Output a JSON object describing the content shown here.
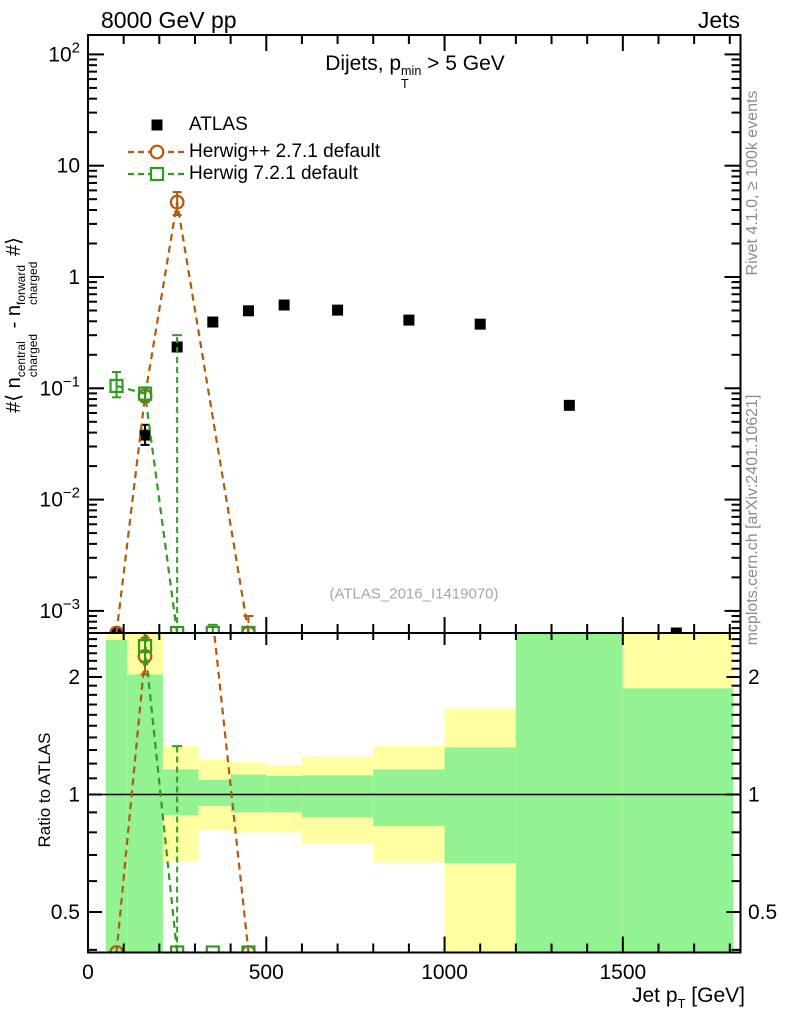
{
  "titles": {
    "top_left": "8000 GeV pp",
    "top_right": "Jets",
    "watermark": "(ATLAS_2016_I1419070)",
    "side_top": "Rivet 4.1.0, ≥ 100k events",
    "side_bottom": "mcplots.cern.ch [arXiv:2401.10621]"
  },
  "subtitle": {
    "pre": "Dijets, p",
    "sup": "min",
    "sub": "T",
    "post": " > 5 GeV"
  },
  "axis_labels": {
    "x": {
      "pre": "Jet p",
      "sub": "T",
      "post": " [GeV]"
    },
    "y_main": {
      "pre": "#⟨ n",
      "sup1": "central",
      "sub1": "charged",
      "mid": " - n",
      "sup2": "forward",
      "sub2": "charged",
      "post": " #⟩"
    },
    "y_ratio": "Ratio to ATLAS"
  },
  "legend": [
    {
      "label": "ATLAS",
      "color": "#000000",
      "marker": "square-filled",
      "dashed": false
    },
    {
      "label": "Herwig++ 2.7.1 default",
      "color": "#b35a0b",
      "marker": "circle-open",
      "dashed": true
    },
    {
      "label": "Herwig 7.2.1 default",
      "color": "#2f9b20",
      "marker": "square-open",
      "dashed": true
    }
  ],
  "chart_data": {
    "type": "scatter",
    "title": "Dijets, pT^min > 5 GeV",
    "x_axis": {
      "label": "Jet pT [GeV]",
      "scale": "linear",
      "range": [
        0,
        1830
      ],
      "major_ticks": [
        0,
        500,
        1000,
        1500
      ],
      "tick_labels": [
        "0",
        "500",
        "1000",
        "1500"
      ],
      "minor_step": 100
    },
    "y_axis_main": {
      "label": "#< n_charged^central - n_charged^forward #>",
      "scale": "log",
      "range": [
        0.00063,
        150
      ],
      "ticks": [
        {
          "v": 100,
          "base": "10",
          "exp": "2"
        },
        {
          "v": 10,
          "base": "10",
          "exp": ""
        },
        {
          "v": 1,
          "base": "1",
          "exp": ""
        },
        {
          "v": 0.1,
          "base": "10",
          "exp": "−1"
        },
        {
          "v": 0.01,
          "base": "10",
          "exp": "−2"
        },
        {
          "v": 0.001,
          "base": "10",
          "exp": "−3"
        }
      ]
    },
    "y_axis_ratio": {
      "label": "Ratio to ATLAS",
      "scale": "log",
      "range": [
        0.394,
        2.59
      ],
      "ticks": [
        {
          "v": 2,
          "t": "2"
        },
        {
          "v": 1,
          "t": "1"
        },
        {
          "v": 0.5,
          "t": "0.5"
        }
      ],
      "minor_from": 0.4,
      "minor_to": 2.5,
      "minor_step": 0.1
    },
    "reference_line": 1,
    "band_colors": {
      "green": "#93f393",
      "yellow": "#ffffa1"
    },
    "ratio_bands": [
      {
        "x1": 50,
        "x2": 110,
        "green": [
          0.05,
          2.49
        ],
        "yellow": [
          0.05,
          5.0
        ]
      },
      {
        "x1": 110,
        "x2": 210,
        "green": [
          0.05,
          2.03
        ],
        "yellow": [
          0.05,
          5.0
        ]
      },
      {
        "x1": 210,
        "x2": 310,
        "green": [
          0.886,
          1.16
        ],
        "yellow": [
          0.676,
          1.33
        ]
      },
      {
        "x1": 310,
        "x2": 400,
        "green": [
          0.935,
          1.09
        ],
        "yellow": [
          0.81,
          1.23
        ]
      },
      {
        "x1": 400,
        "x2": 500,
        "green": [
          0.9,
          1.125
        ],
        "yellow": [
          0.8,
          1.21
        ]
      },
      {
        "x1": 500,
        "x2": 600,
        "green": [
          0.9,
          1.115
        ],
        "yellow": [
          0.8,
          1.19
        ]
      },
      {
        "x1": 600,
        "x2": 800,
        "green": [
          0.875,
          1.12
        ],
        "yellow": [
          0.75,
          1.25
        ]
      },
      {
        "x1": 800,
        "x2": 1000,
        "green": [
          0.83,
          1.16
        ],
        "yellow": [
          0.67,
          1.33
        ]
      },
      {
        "x1": 1000,
        "x2": 1200,
        "green": [
          0.667,
          1.32
        ],
        "yellow": [
          0.05,
          1.66
        ]
      },
      {
        "x1": 1200,
        "x2": 1500,
        "green": [
          0.05,
          5.0
        ],
        "yellow": [
          0.05,
          5.0
        ]
      },
      {
        "x1": 1500,
        "x2": 1810,
        "green": [
          0.05,
          1.87
        ],
        "yellow": [
          0.05,
          5.0
        ]
      }
    ],
    "series": [
      {
        "name": "ATLAS",
        "color": "#000000",
        "marker": "square-filled",
        "line": "none",
        "points": [
          {
            "x": 80,
            "y": null,
            "clamped": true
          },
          {
            "x": 160,
            "y": 0.038,
            "lo": 0.031,
            "hi": 0.047
          },
          {
            "x": 250,
            "y": 0.235,
            "lo": 0.215,
            "hi": 0.258
          },
          {
            "x": 350,
            "y": 0.394
          },
          {
            "x": 450,
            "y": 0.497
          },
          {
            "x": 550,
            "y": 0.56
          },
          {
            "x": 700,
            "y": 0.504
          },
          {
            "x": 900,
            "y": 0.41
          },
          {
            "x": 1100,
            "y": 0.377
          },
          {
            "x": 1350,
            "y": 0.0703
          },
          {
            "x": 1650,
            "y": null,
            "clamped": true
          }
        ],
        "ratio_points": []
      },
      {
        "name": "Herwig++ 2.7.1 default",
        "color": "#b35a0b",
        "marker": "circle-open",
        "line": "dashed",
        "points": [
          {
            "x": 80,
            "y": null,
            "clamped": true
          },
          {
            "x": 160,
            "y": 0.085,
            "lo": 0.075,
            "hi": 0.096
          },
          {
            "x": 250,
            "y": 4.7,
            "lo": 3.6,
            "hi": 5.8
          },
          {
            "x": 450,
            "y": null,
            "clamped": true,
            "whisker": 0.0009
          }
        ],
        "ratio_points": [
          {
            "x": 80,
            "y": null,
            "clamped": true
          },
          {
            "x": 160,
            "y": 2.26,
            "lo": 2.03,
            "hi": 2.52
          },
          {
            "x": 250,
            "y": 20
          },
          {
            "x": 450,
            "y": null,
            "clamped": true
          }
        ]
      },
      {
        "name": "Herwig 7.2.1 default",
        "color": "#2f9b20",
        "marker": "square-open",
        "line": "dashed",
        "points": [
          {
            "x": 80,
            "y": 0.105,
            "lo": 0.083,
            "hi": 0.14
          },
          {
            "x": 160,
            "y": 0.0895,
            "lo": 0.079,
            "hi": 0.102
          },
          {
            "x": 250,
            "y": null,
            "clamped": true,
            "whisker": 0.3
          },
          {
            "x": 350,
            "y": null,
            "clamped": true,
            "whisker": 0.00075
          },
          {
            "x": 450,
            "y": null,
            "clamped": true
          }
        ],
        "ratio_points": [
          {
            "x": 80,
            "y": 50
          },
          {
            "x": 160,
            "y": 2.4,
            "lo": 2.18,
            "hi": 2.64
          },
          {
            "x": 250,
            "y": null,
            "clamped": true,
            "whisker": 1.33
          },
          {
            "x": 350,
            "y": null,
            "clamped": true
          },
          {
            "x": 450,
            "y": null,
            "clamped": true
          }
        ]
      }
    ]
  }
}
